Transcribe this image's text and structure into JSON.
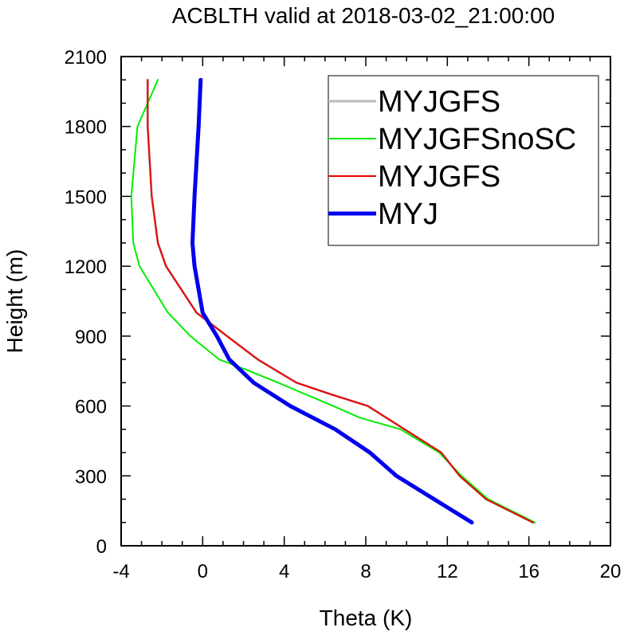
{
  "chart_data": {
    "type": "line",
    "title": "ACBLTH valid at 2018-03-02_21:00:00",
    "xlabel": "Theta (K)",
    "ylabel": "Height (m)",
    "xlim": [
      -4,
      20
    ],
    "ylim": [
      0,
      2100
    ],
    "x_ticks": [
      -4,
      0,
      4,
      8,
      12,
      16,
      20
    ],
    "y_ticks": [
      0,
      300,
      600,
      900,
      1200,
      1500,
      1800,
      2100
    ],
    "x_tick_labels": [
      "-4",
      "0",
      "4",
      "8",
      "12",
      "16",
      "20"
    ],
    "y_tick_labels": [
      "0",
      "300",
      "600",
      "900",
      "1200",
      "1500",
      "1800",
      "2100"
    ],
    "grid": false,
    "legend_position": "top-right",
    "series": [
      {
        "name": "MYJGFS",
        "color": "#bbbbbb",
        "width": 3,
        "points": [
          [
            16.2,
            100
          ],
          [
            13.9,
            200
          ],
          [
            12.6,
            300
          ],
          [
            11.7,
            400
          ],
          [
            9.9,
            500
          ],
          [
            8.1,
            600
          ],
          [
            6.3,
            650
          ],
          [
            4.6,
            700
          ],
          [
            2.7,
            800
          ],
          [
            1.2,
            900
          ],
          [
            -0.3,
            1000
          ],
          [
            -1.8,
            1200
          ],
          [
            -2.2,
            1300
          ],
          [
            -2.5,
            1500
          ],
          [
            -2.7,
            1800
          ],
          [
            -2.7,
            2000
          ]
        ]
      },
      {
        "name": "MYJGFSnoSC",
        "color": "#00ee00",
        "width": 2,
        "points": [
          [
            16.3,
            100
          ],
          [
            14.0,
            200
          ],
          [
            12.7,
            300
          ],
          [
            11.6,
            400
          ],
          [
            9.7,
            500
          ],
          [
            7.7,
            550
          ],
          [
            6.4,
            600
          ],
          [
            3.7,
            700
          ],
          [
            2.3,
            750
          ],
          [
            0.8,
            800
          ],
          [
            -0.6,
            900
          ],
          [
            -1.7,
            1000
          ],
          [
            -3.1,
            1200
          ],
          [
            -3.4,
            1300
          ],
          [
            -3.5,
            1500
          ],
          [
            -3.2,
            1800
          ],
          [
            -2.2,
            2000
          ]
        ]
      },
      {
        "name": "MYJGFS",
        "color": "#ee0000",
        "width": 2,
        "points": [
          [
            16.2,
            100
          ],
          [
            13.9,
            200
          ],
          [
            12.6,
            300
          ],
          [
            11.7,
            400
          ],
          [
            9.9,
            500
          ],
          [
            8.1,
            600
          ],
          [
            6.3,
            650
          ],
          [
            4.6,
            700
          ],
          [
            2.7,
            800
          ],
          [
            1.2,
            900
          ],
          [
            -0.3,
            1000
          ],
          [
            -1.8,
            1200
          ],
          [
            -2.2,
            1300
          ],
          [
            -2.5,
            1500
          ],
          [
            -2.7,
            1800
          ],
          [
            -2.7,
            2000
          ]
        ]
      },
      {
        "name": "MYJ",
        "color": "#0000ee",
        "width": 5,
        "points": [
          [
            13.2,
            100
          ],
          [
            9.5,
            300
          ],
          [
            8.2,
            400
          ],
          [
            6.5,
            500
          ],
          [
            4.3,
            600
          ],
          [
            2.5,
            700
          ],
          [
            1.3,
            800
          ],
          [
            0.7,
            900
          ],
          [
            0.0,
            1000
          ],
          [
            -0.4,
            1200
          ],
          [
            -0.5,
            1300
          ],
          [
            -0.4,
            1500
          ],
          [
            -0.2,
            1800
          ],
          [
            -0.1,
            2000
          ]
        ]
      }
    ]
  }
}
